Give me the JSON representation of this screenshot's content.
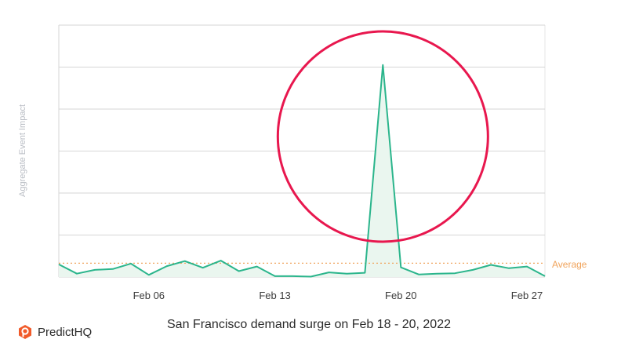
{
  "chart_data": {
    "type": "area",
    "ylabel": "Aggregate Event Impact",
    "x_tick_labels": [
      "Feb 06",
      "Feb 13",
      "Feb 20",
      "Feb 27"
    ],
    "x_tick_days": [
      6,
      13,
      20,
      27
    ],
    "ylim": [
      0,
      6
    ],
    "grid": true,
    "x": [
      1,
      2,
      3,
      4,
      5,
      6,
      7,
      8,
      9,
      10,
      11,
      12,
      13,
      14,
      15,
      16,
      17,
      18,
      19,
      20,
      21,
      22,
      23,
      24,
      25,
      26,
      27,
      28
    ],
    "values": [
      0.3,
      0.08,
      0.17,
      0.19,
      0.32,
      0.05,
      0.26,
      0.38,
      0.22,
      0.39,
      0.14,
      0.25,
      0.02,
      0.02,
      0.01,
      0.11,
      0.08,
      0.1,
      5.05,
      0.23,
      0.06,
      0.08,
      0.09,
      0.17,
      0.29,
      0.21,
      0.25,
      0.02
    ],
    "average": {
      "label": "Average",
      "value": 0.33
    },
    "annotations": [
      {
        "type": "circle",
        "around_x": 19
      }
    ],
    "caption": "San Francisco demand surge on Feb 18 - 20, 2022",
    "colors": {
      "line": "#2bb58c",
      "fill": "#eaf6ef",
      "average": "#f0a35b",
      "highlight": "#e8174e",
      "grid": "#d6d6d6"
    }
  },
  "brand": {
    "name": "PredictHQ",
    "icon": "predicthq-logo-icon"
  }
}
